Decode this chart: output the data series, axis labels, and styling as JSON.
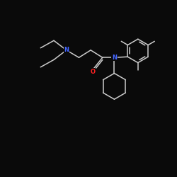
{
  "bg_color": "#0a0a0a",
  "line_color": "#cccccc",
  "N_color": "#4466ff",
  "O_color": "#ff2222",
  "lw": 1.1,
  "fs": 6.0,
  "figsize": [
    2.5,
    2.5
  ],
  "dpi": 100,
  "xlim": [
    -1,
    11
  ],
  "ylim": [
    -1,
    11
  ]
}
